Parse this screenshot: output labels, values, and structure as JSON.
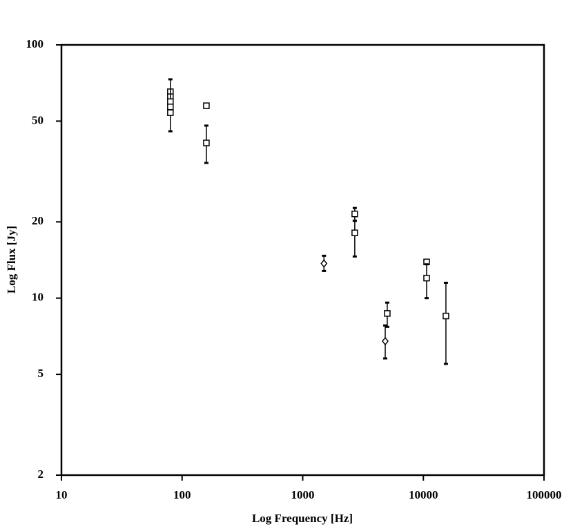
{
  "chart_data": {
    "type": "scatter",
    "x_label": "Log Frequency [Hz]",
    "y_label": "Log Flux [Jy]",
    "xscale": "log",
    "yscale": "log",
    "xlim": [
      10,
      100000
    ],
    "xticks": [
      10,
      100,
      1000,
      10000,
      100000
    ],
    "ylim": [
      2,
      100
    ],
    "yticks": [
      2,
      5,
      10,
      20,
      50,
      100
    ],
    "grid": false,
    "series": [
      {
        "marker": "square",
        "color": "#000000",
        "x": [
          80,
          80,
          80,
          80,
          80,
          159,
          159,
          2700,
          2700,
          5020,
          10640,
          10640,
          15380
        ],
        "values": [
          65.3,
          62.4,
          59.7,
          56.9,
          54.0,
          57.5,
          41.0,
          21.5,
          18.1,
          8.7,
          13.9,
          12.0,
          8.5
        ],
        "ylow": [
          null,
          null,
          45.6,
          null,
          null,
          null,
          34.2,
          20.2,
          14.6,
          7.7,
          null,
          10.0,
          5.5
        ],
        "yhigh": [
          null,
          null,
          73.1,
          null,
          null,
          null,
          48.0,
          22.7,
          20.2,
          9.6,
          null,
          13.6,
          11.5
        ]
      },
      {
        "marker": "diamond",
        "color": "#000000",
        "x": [
          1500,
          4830
        ],
        "values": [
          13.7,
          6.76
        ],
        "ylow": [
          12.8,
          5.78
        ],
        "yhigh": [
          14.7,
          7.8
        ]
      }
    ]
  }
}
